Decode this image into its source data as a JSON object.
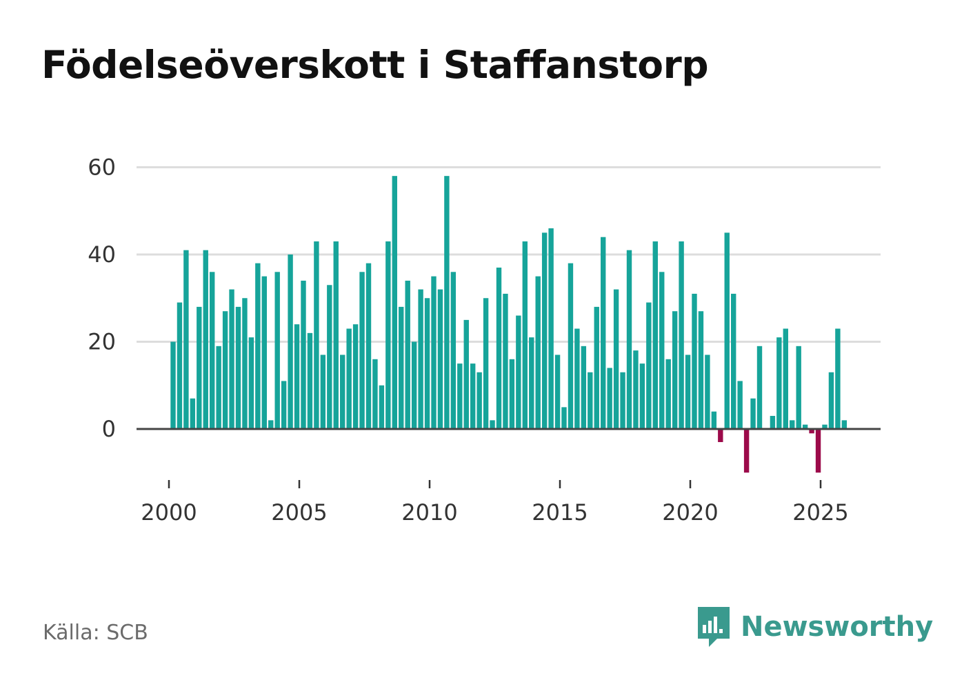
{
  "chart_data": {
    "type": "bar",
    "title": "Födelseöverskott i Staffanstorp",
    "xlabel": "",
    "ylabel": "",
    "ylim": [
      -10,
      60
    ],
    "y_ticks": [
      0,
      20,
      40,
      60
    ],
    "x_ticks": [
      2000,
      2005,
      2010,
      2015,
      2020,
      2025
    ],
    "start_year": 2000,
    "periods_per_year": 4,
    "positive_color": "#16a49a",
    "negative_color": "#9c0a4a",
    "values": [
      20,
      29,
      41,
      7,
      28,
      41,
      36,
      19,
      27,
      32,
      28,
      30,
      21,
      38,
      35,
      2,
      36,
      11,
      40,
      24,
      34,
      22,
      43,
      17,
      33,
      43,
      17,
      23,
      24,
      36,
      38,
      16,
      10,
      43,
      58,
      28,
      34,
      20,
      32,
      30,
      35,
      32,
      58,
      36,
      15,
      25,
      15,
      13,
      30,
      2,
      37,
      31,
      16,
      26,
      43,
      21,
      35,
      45,
      46,
      17,
      5,
      38,
      23,
      19,
      13,
      28,
      44,
      14,
      32,
      13,
      41,
      18,
      15,
      29,
      43,
      36,
      16,
      27,
      43,
      17,
      31,
      27,
      17,
      4,
      -3,
      45,
      31,
      11,
      -10,
      7,
      19,
      0,
      3,
      21,
      23,
      2,
      19,
      1,
      -1,
      -10,
      1,
      13,
      23,
      2
    ]
  },
  "footer": {
    "source": "Källa: SCB",
    "brand": "Newsworthy"
  }
}
